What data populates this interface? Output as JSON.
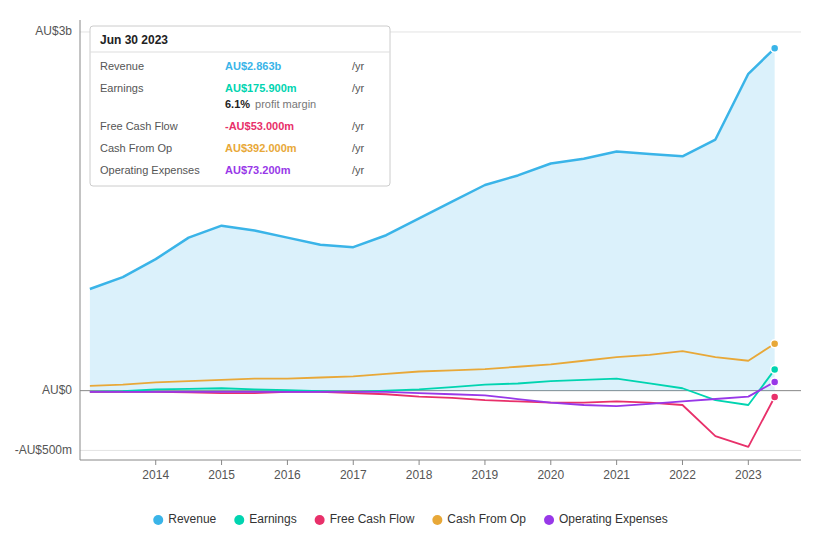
{
  "chart_data": {
    "type": "line",
    "x": [
      2013.0,
      2013.5,
      2014.0,
      2014.5,
      2015.0,
      2015.5,
      2016.0,
      2016.5,
      2017.0,
      2017.5,
      2018.0,
      2018.5,
      2019.0,
      2019.5,
      2020.0,
      2020.5,
      2021.0,
      2021.5,
      2022.0,
      2022.5,
      2023.0,
      2023.4
    ],
    "xlim": [
      2012.85,
      2023.8
    ],
    "xticks": [
      2014,
      2015,
      2016,
      2017,
      2018,
      2019,
      2020,
      2021,
      2022,
      2023
    ],
    "ylim": [
      -0.58,
      3.1
    ],
    "yticks": [
      {
        "value": -0.5,
        "label": "-AU$500m"
      },
      {
        "value": 0,
        "label": "AU$0"
      },
      {
        "value": 3.0,
        "label": "AU$3b"
      }
    ],
    "grid": true,
    "legend": "bottom",
    "series": [
      {
        "name": "Revenue",
        "color": "#3ab4e8",
        "type": "area",
        "values": [
          0.85,
          0.95,
          1.1,
          1.28,
          1.38,
          1.34,
          1.28,
          1.22,
          1.2,
          1.3,
          1.44,
          1.58,
          1.72,
          1.8,
          1.9,
          1.94,
          2.0,
          1.98,
          1.96,
          2.1,
          2.65,
          2.863
        ]
      },
      {
        "name": "Earnings",
        "color": "#00d4b0",
        "type": "line",
        "values": [
          -0.01,
          -0.005,
          0.01,
          0.015,
          0.02,
          0.01,
          0.005,
          -0.005,
          -0.01,
          0.0,
          0.01,
          0.03,
          0.05,
          0.06,
          0.08,
          0.09,
          0.1,
          0.06,
          0.02,
          -0.08,
          -0.12,
          0.1759
        ]
      },
      {
        "name": "Free Cash Flow",
        "color": "#e8306a",
        "type": "line",
        "values": [
          -0.01,
          -0.01,
          -0.01,
          -0.015,
          -0.02,
          -0.02,
          -0.01,
          -0.01,
          -0.02,
          -0.03,
          -0.05,
          -0.06,
          -0.08,
          -0.09,
          -0.1,
          -0.1,
          -0.09,
          -0.1,
          -0.12,
          -0.38,
          -0.47,
          -0.053
        ]
      },
      {
        "name": "Cash From Op",
        "color": "#e8a838",
        "type": "line",
        "values": [
          0.04,
          0.05,
          0.07,
          0.08,
          0.09,
          0.1,
          0.1,
          0.11,
          0.12,
          0.14,
          0.16,
          0.17,
          0.18,
          0.2,
          0.22,
          0.25,
          0.28,
          0.3,
          0.33,
          0.28,
          0.25,
          0.392
        ]
      },
      {
        "name": "Operating Expenses",
        "color": "#9838e8",
        "type": "line",
        "values": [
          -0.01,
          -0.01,
          -0.01,
          -0.01,
          -0.01,
          -0.01,
          -0.01,
          -0.01,
          -0.01,
          -0.01,
          -0.02,
          -0.03,
          -0.04,
          -0.07,
          -0.1,
          -0.12,
          -0.13,
          -0.11,
          -0.09,
          -0.07,
          -0.05,
          0.0732
        ]
      }
    ],
    "annotations": [
      {
        "title": "Jun 30 2023",
        "rows": [
          {
            "label": "Revenue",
            "text": "AU$2.863b",
            "unit": "/yr"
          },
          {
            "label": "Earnings",
            "text": "AU$175.900m",
            "unit": "/yr",
            "note_value": "6.1%",
            "note_text": "profit margin"
          },
          {
            "label": "Free Cash Flow",
            "text": "-AU$53.000m",
            "unit": "/yr"
          },
          {
            "label": "Cash From Op",
            "text": "AU$392.000m",
            "unit": "/yr"
          },
          {
            "label": "Operating Expenses",
            "text": "AU$73.200m",
            "unit": "/yr"
          }
        ]
      }
    ]
  }
}
